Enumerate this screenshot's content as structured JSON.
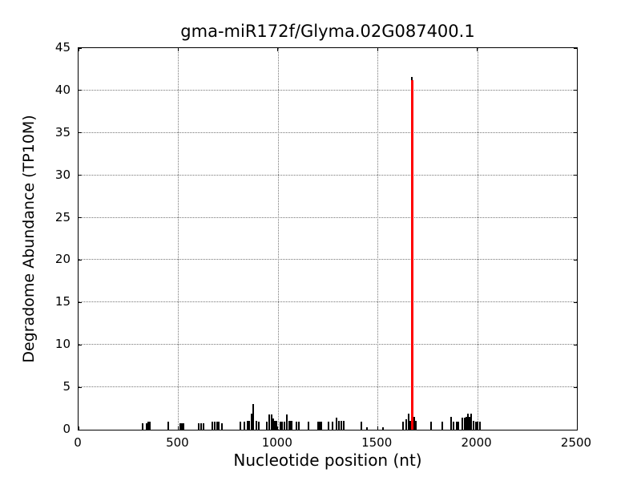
{
  "chart_data": {
    "type": "bar",
    "title": "gma-miR172f/Glyma.02G087400.1",
    "xlabel": "Nucleotide position (nt)",
    "ylabel": "Degradome Abundance (TP10M)",
    "xlim": [
      0,
      2500
    ],
    "ylim": [
      0,
      45
    ],
    "xticks": [
      0,
      500,
      1000,
      1500,
      2000,
      2500
    ],
    "yticks": [
      0,
      5,
      10,
      15,
      20,
      25,
      30,
      35,
      40,
      45
    ],
    "grid": "dotted lines at interior major ticks, both axes",
    "legend": "none",
    "bar_color": "#000000",
    "highlight_color": "#ff0000",
    "peak": {
      "x": 1674,
      "value": 41.3,
      "color": "#ff0000",
      "note": "miRNA cleavage site spike"
    },
    "spikes": [
      {
        "x": 320,
        "v": 0.8
      },
      {
        "x": 340,
        "v": 0.8
      },
      {
        "x": 355,
        "v": 0.9,
        "w": 4
      },
      {
        "x": 449,
        "v": 0.9
      },
      {
        "x": 509,
        "v": 0.8
      },
      {
        "x": 517,
        "v": 0.8
      },
      {
        "x": 525,
        "v": 0.8
      },
      {
        "x": 601,
        "v": 0.8
      },
      {
        "x": 613,
        "v": 0.8
      },
      {
        "x": 625,
        "v": 0.8
      },
      {
        "x": 673,
        "v": 0.9
      },
      {
        "x": 685,
        "v": 0.9
      },
      {
        "x": 697,
        "v": 0.9
      },
      {
        "x": 705,
        "v": 0.9
      },
      {
        "x": 721,
        "v": 0.8
      },
      {
        "x": 813,
        "v": 0.9
      },
      {
        "x": 833,
        "v": 0.9
      },
      {
        "x": 849,
        "v": 1.0
      },
      {
        "x": 857,
        "v": 1.0
      },
      {
        "x": 869,
        "v": 1.9
      },
      {
        "x": 877,
        "v": 3.0
      },
      {
        "x": 893,
        "v": 1.0
      },
      {
        "x": 905,
        "v": 0.9
      },
      {
        "x": 945,
        "v": 0.9
      },
      {
        "x": 957,
        "v": 1.8
      },
      {
        "x": 969,
        "v": 1.8
      },
      {
        "x": 977,
        "v": 1.3
      },
      {
        "x": 985,
        "v": 1.0
      },
      {
        "x": 993,
        "v": 1.0
      },
      {
        "x": 1013,
        "v": 0.9
      },
      {
        "x": 1021,
        "v": 0.9
      },
      {
        "x": 1033,
        "v": 0.9
      },
      {
        "x": 1045,
        "v": 1.8
      },
      {
        "x": 1057,
        "v": 1.0
      },
      {
        "x": 1065,
        "v": 1.0,
        "w": 4
      },
      {
        "x": 1093,
        "v": 0.9
      },
      {
        "x": 1105,
        "v": 0.9
      },
      {
        "x": 1153,
        "v": 0.9
      },
      {
        "x": 1201,
        "v": 0.9
      },
      {
        "x": 1209,
        "v": 0.9
      },
      {
        "x": 1217,
        "v": 0.9
      },
      {
        "x": 1253,
        "v": 0.9
      },
      {
        "x": 1273,
        "v": 0.9
      },
      {
        "x": 1294,
        "v": 1.4
      },
      {
        "x": 1306,
        "v": 1.0
      },
      {
        "x": 1318,
        "v": 1.0
      },
      {
        "x": 1330,
        "v": 1.0
      },
      {
        "x": 1418,
        "v": 0.9
      },
      {
        "x": 1447,
        "v": 0.3
      },
      {
        "x": 1526,
        "v": 0.3
      },
      {
        "x": 1627,
        "v": 0.9
      },
      {
        "x": 1643,
        "v": 1.2
      },
      {
        "x": 1655,
        "v": 1.9
      },
      {
        "x": 1663,
        "v": 1.0
      },
      {
        "x": 1674,
        "v": 41.6
      },
      {
        "x": 1674,
        "v": 41.2,
        "c": "#ff0000",
        "w": 3
      },
      {
        "x": 1686,
        "v": 1.5
      },
      {
        "x": 1694,
        "v": 1.0
      },
      {
        "x": 1767,
        "v": 0.9
      },
      {
        "x": 1823,
        "v": 0.9
      },
      {
        "x": 1867,
        "v": 1.5
      },
      {
        "x": 1883,
        "v": 0.9
      },
      {
        "x": 1899,
        "v": 0.9
      },
      {
        "x": 1907,
        "v": 0.9
      },
      {
        "x": 1927,
        "v": 1.4
      },
      {
        "x": 1939,
        "v": 1.4
      },
      {
        "x": 1947,
        "v": 1.5
      },
      {
        "x": 1955,
        "v": 1.9
      },
      {
        "x": 1963,
        "v": 1.5
      },
      {
        "x": 1971,
        "v": 1.9
      },
      {
        "x": 1983,
        "v": 1.0
      },
      {
        "x": 1995,
        "v": 0.9
      },
      {
        "x": 2003,
        "v": 0.9
      },
      {
        "x": 2015,
        "v": 0.9
      }
    ]
  }
}
